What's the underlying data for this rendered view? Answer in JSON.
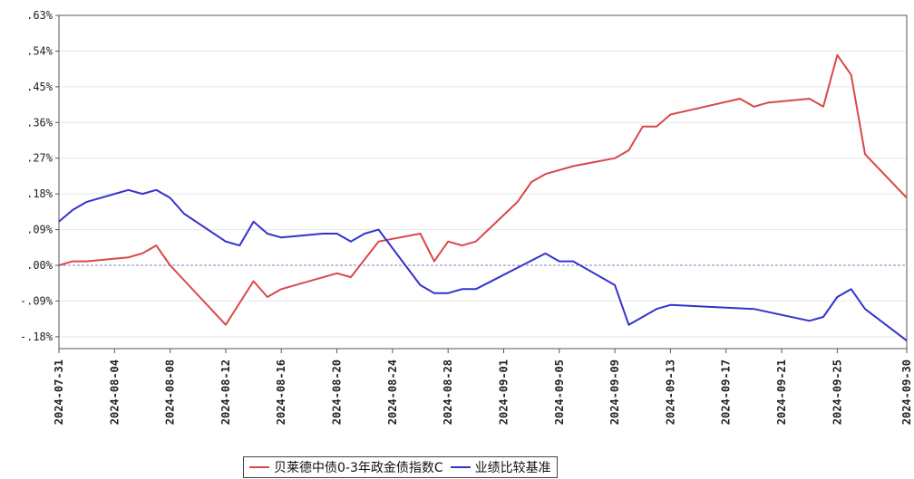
{
  "chart_data": {
    "type": "line",
    "title": "",
    "xlabel": "",
    "ylabel": "",
    "ylim": [
      -0.21,
      0.63
    ],
    "y_ticks": [
      ".63%",
      ".54%",
      ".45%",
      ".36%",
      ".27%",
      ".18%",
      ".09%",
      ".00%",
      "-.09%",
      "-.18%"
    ],
    "y_tick_values": [
      0.63,
      0.54,
      0.45,
      0.36,
      0.27,
      0.18,
      0.09,
      0.0,
      -0.09,
      -0.18
    ],
    "x_ticks": [
      "2024-07-31",
      "2024-08-04",
      "2024-08-08",
      "2024-08-12",
      "2024-08-16",
      "2024-08-20",
      "2024-08-24",
      "2024-08-28",
      "2024-09-01",
      "2024-09-05",
      "2024-09-09",
      "2024-09-13",
      "2024-09-17",
      "2024-09-21",
      "2024-09-25",
      "2024-09-30"
    ],
    "x_range": [
      "2024-07-31",
      "2024-09-30"
    ],
    "grid": true,
    "legend_position": "bottom",
    "series": [
      {
        "name": "贝莱德中债0-3年政金债指数C",
        "color": "#d94848",
        "points": [
          [
            "2024-07-31",
            0.0
          ],
          [
            "2024-08-01",
            0.01
          ],
          [
            "2024-08-02",
            0.01
          ],
          [
            "2024-08-05",
            0.02
          ],
          [
            "2024-08-06",
            0.03
          ],
          [
            "2024-08-07",
            0.05
          ],
          [
            "2024-08-08",
            0.0
          ],
          [
            "2024-08-12",
            -0.15
          ],
          [
            "2024-08-14",
            -0.04
          ],
          [
            "2024-08-15",
            -0.08
          ],
          [
            "2024-08-16",
            -0.06
          ],
          [
            "2024-08-20",
            -0.02
          ],
          [
            "2024-08-21",
            -0.03
          ],
          [
            "2024-08-23",
            0.06
          ],
          [
            "2024-08-26",
            0.08
          ],
          [
            "2024-08-27",
            0.01
          ],
          [
            "2024-08-28",
            0.06
          ],
          [
            "2024-08-29",
            0.05
          ],
          [
            "2024-08-30",
            0.06
          ],
          [
            "2024-09-02",
            0.16
          ],
          [
            "2024-09-03",
            0.21
          ],
          [
            "2024-09-04",
            0.23
          ],
          [
            "2024-09-06",
            0.25
          ],
          [
            "2024-09-09",
            0.27
          ],
          [
            "2024-09-10",
            0.29
          ],
          [
            "2024-09-11",
            0.35
          ],
          [
            "2024-09-12",
            0.35
          ],
          [
            "2024-09-13",
            0.38
          ],
          [
            "2024-09-18",
            0.42
          ],
          [
            "2024-09-19",
            0.4
          ],
          [
            "2024-09-20",
            0.41
          ],
          [
            "2024-09-23",
            0.42
          ],
          [
            "2024-09-24",
            0.4
          ],
          [
            "2024-09-25",
            0.53
          ],
          [
            "2024-09-26",
            0.48
          ],
          [
            "2024-09-27",
            0.28
          ],
          [
            "2024-09-30",
            0.17
          ]
        ]
      },
      {
        "name": "业绩比较基准",
        "color": "#3333cc",
        "points": [
          [
            "2024-07-31",
            0.11
          ],
          [
            "2024-08-01",
            0.14
          ],
          [
            "2024-08-02",
            0.16
          ],
          [
            "2024-08-05",
            0.19
          ],
          [
            "2024-08-06",
            0.18
          ],
          [
            "2024-08-07",
            0.19
          ],
          [
            "2024-08-08",
            0.17
          ],
          [
            "2024-08-09",
            0.13
          ],
          [
            "2024-08-12",
            0.06
          ],
          [
            "2024-08-13",
            0.05
          ],
          [
            "2024-08-14",
            0.11
          ],
          [
            "2024-08-15",
            0.08
          ],
          [
            "2024-08-16",
            0.07
          ],
          [
            "2024-08-19",
            0.08
          ],
          [
            "2024-08-20",
            0.08
          ],
          [
            "2024-08-21",
            0.06
          ],
          [
            "2024-08-22",
            0.08
          ],
          [
            "2024-08-23",
            0.09
          ],
          [
            "2024-08-26",
            -0.05
          ],
          [
            "2024-08-27",
            -0.07
          ],
          [
            "2024-08-28",
            -0.07
          ],
          [
            "2024-08-29",
            -0.06
          ],
          [
            "2024-08-30",
            -0.06
          ],
          [
            "2024-09-04",
            0.03
          ],
          [
            "2024-09-05",
            0.01
          ],
          [
            "2024-09-06",
            0.01
          ],
          [
            "2024-09-09",
            -0.05
          ],
          [
            "2024-09-10",
            -0.15
          ],
          [
            "2024-09-12",
            -0.11
          ],
          [
            "2024-09-13",
            -0.1
          ],
          [
            "2024-09-19",
            -0.11
          ],
          [
            "2024-09-23",
            -0.14
          ],
          [
            "2024-09-24",
            -0.13
          ],
          [
            "2024-09-25",
            -0.08
          ],
          [
            "2024-09-26",
            -0.06
          ],
          [
            "2024-09-27",
            -0.11
          ],
          [
            "2024-09-30",
            -0.19
          ]
        ]
      }
    ]
  }
}
